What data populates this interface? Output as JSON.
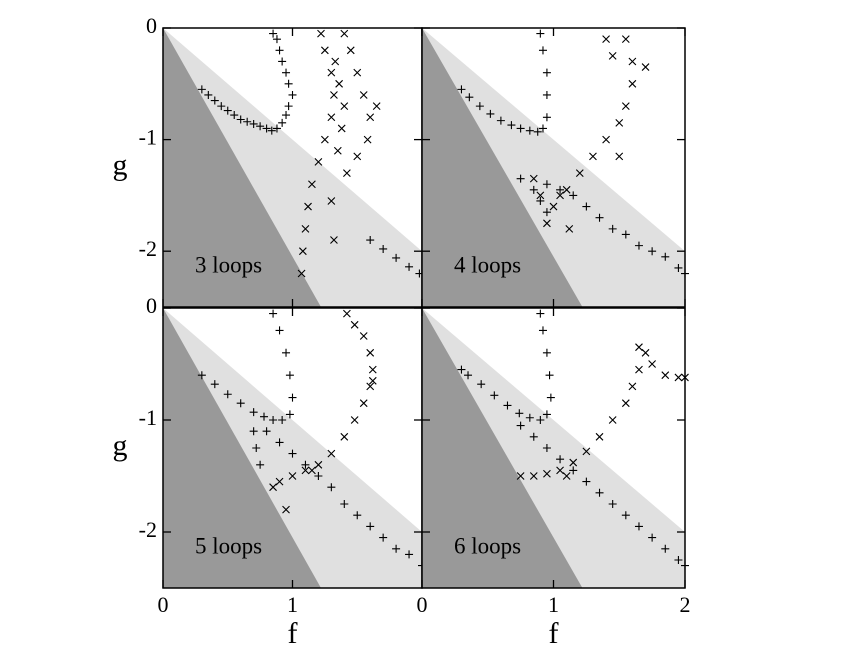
{
  "chart_data": [
    {
      "type": "scatter",
      "title": "3 loops",
      "ylabel": "g",
      "xlim": [
        0,
        2
      ],
      "ylim": [
        -2.5,
        0
      ],
      "xticks": [
        0,
        1,
        2
      ],
      "yticks": [
        -2,
        -1,
        0
      ],
      "show_xtick_labels": false,
      "show_ytick_labels": true,
      "regions": [
        {
          "color": "#e0e0e0",
          "vertices": [
            [
              0,
              0
            ],
            [
              2,
              -2
            ],
            [
              2,
              -2.5
            ],
            [
              0,
              -2.5
            ]
          ]
        },
        {
          "color": "#999999",
          "vertices": [
            [
              0,
              0
            ],
            [
              1.22,
              -2.5
            ],
            [
              0,
              -2.5
            ]
          ]
        }
      ],
      "series": [
        {
          "marker": "+",
          "color": "#000000",
          "x": [
            0.85,
            0.88,
            0.9,
            0.92,
            0.95,
            0.97,
            1.0,
            0.97,
            0.95,
            0.92,
            0.88,
            0.84,
            0.8,
            0.75,
            0.7,
            0.65,
            0.6,
            0.55,
            0.5,
            0.45,
            0.4,
            0.35,
            0.3,
            1.6,
            1.7,
            1.8,
            1.9,
            1.98
          ],
          "y": [
            -0.05,
            -0.1,
            -0.2,
            -0.3,
            -0.4,
            -0.5,
            -0.6,
            -0.7,
            -0.78,
            -0.85,
            -0.9,
            -0.92,
            -0.9,
            -0.88,
            -0.86,
            -0.84,
            -0.82,
            -0.78,
            -0.74,
            -0.7,
            -0.65,
            -0.6,
            -0.55,
            -1.9,
            -1.98,
            -2.06,
            -2.14,
            -2.2
          ]
        },
        {
          "marker": "x",
          "color": "#000000",
          "x": [
            1.22,
            1.25,
            1.3,
            1.32,
            1.3,
            1.25,
            1.2,
            1.15,
            1.12,
            1.1,
            1.08,
            1.07,
            1.4,
            1.45,
            1.5,
            1.55,
            1.6,
            1.58,
            1.5,
            1.42,
            1.35,
            1.38,
            1.4,
            1.36,
            1.33,
            1.3,
            1.32,
            1.65
          ],
          "y": [
            -0.05,
            -0.2,
            -0.4,
            -0.6,
            -0.8,
            -1.0,
            -1.2,
            -1.4,
            -1.6,
            -1.8,
            -2.0,
            -2.2,
            -0.05,
            -0.2,
            -0.4,
            -0.6,
            -0.8,
            -1.0,
            -1.15,
            -1.3,
            -1.1,
            -0.9,
            -0.7,
            -0.5,
            -0.3,
            -1.55,
            -1.9,
            -0.7
          ]
        }
      ]
    },
    {
      "type": "scatter",
      "title": "4 loops",
      "xlim": [
        0,
        2
      ],
      "ylim": [
        -2.5,
        0
      ],
      "xticks": [
        0,
        1,
        2
      ],
      "yticks": [
        -2,
        -1,
        0
      ],
      "show_xtick_labels": false,
      "show_ytick_labels": false,
      "regions": [
        {
          "color": "#e0e0e0",
          "vertices": [
            [
              0,
              0
            ],
            [
              2,
              -2
            ],
            [
              2,
              -2.5
            ],
            [
              0,
              -2.5
            ]
          ]
        },
        {
          "color": "#999999",
          "vertices": [
            [
              0,
              0
            ],
            [
              1.22,
              -2.5
            ],
            [
              0,
              -2.5
            ]
          ]
        }
      ],
      "series": [
        {
          "marker": "+",
          "color": "#000000",
          "x": [
            0.9,
            0.92,
            0.95,
            0.95,
            0.95,
            0.92,
            0.88,
            0.82,
            0.75,
            0.68,
            0.6,
            0.52,
            0.44,
            0.36,
            0.3,
            0.75,
            0.85,
            0.95,
            1.05,
            1.15,
            1.25,
            1.35,
            1.45,
            1.55,
            1.65,
            1.75,
            1.85,
            1.95,
            2.0,
            0.9,
            0.95
          ],
          "y": [
            -0.05,
            -0.2,
            -0.4,
            -0.6,
            -0.8,
            -0.9,
            -0.93,
            -0.92,
            -0.9,
            -0.87,
            -0.83,
            -0.77,
            -0.7,
            -0.62,
            -0.55,
            -1.35,
            -1.45,
            -1.4,
            -1.45,
            -1.5,
            -1.6,
            -1.7,
            -1.8,
            -1.85,
            -1.95,
            -2.0,
            -2.05,
            -2.15,
            -2.2,
            -1.55,
            -1.65
          ]
        },
        {
          "marker": "x",
          "color": "#000000",
          "x": [
            0.95,
            1.0,
            1.1,
            1.2,
            1.3,
            1.4,
            1.5,
            1.55,
            1.6,
            1.6,
            1.55,
            1.4,
            1.45,
            1.7,
            1.5,
            1.05,
            0.9,
            0.85,
            1.12
          ],
          "y": [
            -1.75,
            -1.6,
            -1.45,
            -1.3,
            -1.15,
            -1.0,
            -0.85,
            -0.7,
            -0.5,
            -0.3,
            -0.1,
            -0.1,
            -0.25,
            -0.35,
            -1.15,
            -1.5,
            -1.5,
            -1.35,
            -1.8
          ]
        }
      ]
    },
    {
      "type": "scatter",
      "title": "5 loops",
      "xlabel": "f",
      "ylabel": "g",
      "xlim": [
        0,
        2
      ],
      "ylim": [
        -2.5,
        0
      ],
      "xticks": [
        0,
        1
      ],
      "yticks": [
        -2,
        -1,
        0
      ],
      "show_xtick_labels": true,
      "show_ytick_labels": true,
      "regions": [
        {
          "color": "#e0e0e0",
          "vertices": [
            [
              0,
              0
            ],
            [
              2,
              -2
            ],
            [
              2,
              -2.5
            ],
            [
              0,
              -2.5
            ]
          ]
        },
        {
          "color": "#999999",
          "vertices": [
            [
              0,
              0
            ],
            [
              1.22,
              -2.5
            ],
            [
              0,
              -2.5
            ]
          ]
        }
      ],
      "series": [
        {
          "marker": "+",
          "color": "#000000",
          "x": [
            0.85,
            0.9,
            0.95,
            0.98,
            1.0,
            0.98,
            0.92,
            0.85,
            0.78,
            0.7,
            0.6,
            0.5,
            0.4,
            0.3,
            0.7,
            0.72,
            0.75,
            0.8,
            0.9,
            1.0,
            1.1,
            1.2,
            1.3,
            1.4,
            1.5,
            1.6,
            1.7,
            1.8,
            1.9,
            2.0
          ],
          "y": [
            -0.05,
            -0.2,
            -0.4,
            -0.6,
            -0.8,
            -0.95,
            -1.0,
            -1.0,
            -0.97,
            -0.93,
            -0.85,
            -0.77,
            -0.68,
            -0.6,
            -1.1,
            -1.25,
            -1.4,
            -1.1,
            -1.2,
            -1.3,
            -1.4,
            -1.5,
            -1.6,
            -1.75,
            -1.85,
            -1.95,
            -2.05,
            -2.15,
            -2.2,
            -2.3
          ]
        },
        {
          "marker": "x",
          "color": "#000000",
          "x": [
            1.42,
            1.48,
            1.55,
            1.6,
            1.62,
            1.6,
            1.55,
            1.48,
            1.4,
            1.3,
            1.2,
            1.1,
            1.0,
            0.9,
            0.85,
            0.95,
            1.62,
            1.15
          ],
          "y": [
            -0.05,
            -0.15,
            -0.25,
            -0.4,
            -0.55,
            -0.7,
            -0.85,
            -1.0,
            -1.15,
            -1.3,
            -1.4,
            -1.45,
            -1.5,
            -1.55,
            -1.6,
            -1.8,
            -0.65,
            -1.45
          ]
        }
      ]
    },
    {
      "type": "scatter",
      "title": "6 loops",
      "xlabel": "f",
      "xlim": [
        0,
        2
      ],
      "ylim": [
        -2.5,
        0
      ],
      "xticks": [
        0,
        1,
        2
      ],
      "yticks": [
        -2,
        -1,
        0
      ],
      "show_xtick_labels": true,
      "show_ytick_labels": false,
      "regions": [
        {
          "color": "#e0e0e0",
          "vertices": [
            [
              0,
              0
            ],
            [
              2,
              -2
            ],
            [
              2,
              -2.5
            ],
            [
              0,
              -2.5
            ]
          ]
        },
        {
          "color": "#999999",
          "vertices": [
            [
              0,
              0
            ],
            [
              1.22,
              -2.5
            ],
            [
              0,
              -2.5
            ]
          ]
        }
      ],
      "series": [
        {
          "marker": "+",
          "color": "#000000",
          "x": [
            0.9,
            0.92,
            0.95,
            0.97,
            0.98,
            0.95,
            0.9,
            0.82,
            0.74,
            0.65,
            0.55,
            0.45,
            0.35,
            0.3,
            0.75,
            0.85,
            0.95,
            1.05,
            1.15,
            1.25,
            1.35,
            1.45,
            1.55,
            1.65,
            1.75,
            1.85,
            1.95,
            2.0
          ],
          "y": [
            -0.05,
            -0.2,
            -0.4,
            -0.6,
            -0.8,
            -0.95,
            -1.0,
            -0.98,
            -0.94,
            -0.87,
            -0.78,
            -0.68,
            -0.6,
            -0.55,
            -1.05,
            -1.15,
            -1.25,
            -1.35,
            -1.45,
            -1.55,
            -1.65,
            -1.75,
            -1.85,
            -1.95,
            -2.05,
            -2.15,
            -2.25,
            -2.3
          ]
        },
        {
          "marker": "x",
          "color": "#000000",
          "x": [
            0.75,
            0.85,
            0.95,
            1.05,
            1.15,
            1.25,
            1.35,
            1.45,
            1.55,
            1.6,
            1.65,
            1.7,
            1.65,
            1.75,
            1.85,
            1.95,
            2.0,
            1.1
          ],
          "y": [
            -1.5,
            -1.5,
            -1.48,
            -1.45,
            -1.38,
            -1.28,
            -1.15,
            -1.0,
            -0.85,
            -0.7,
            -0.55,
            -0.4,
            -0.35,
            -0.5,
            -0.6,
            -0.62,
            -0.62,
            -1.5
          ]
        }
      ]
    }
  ]
}
